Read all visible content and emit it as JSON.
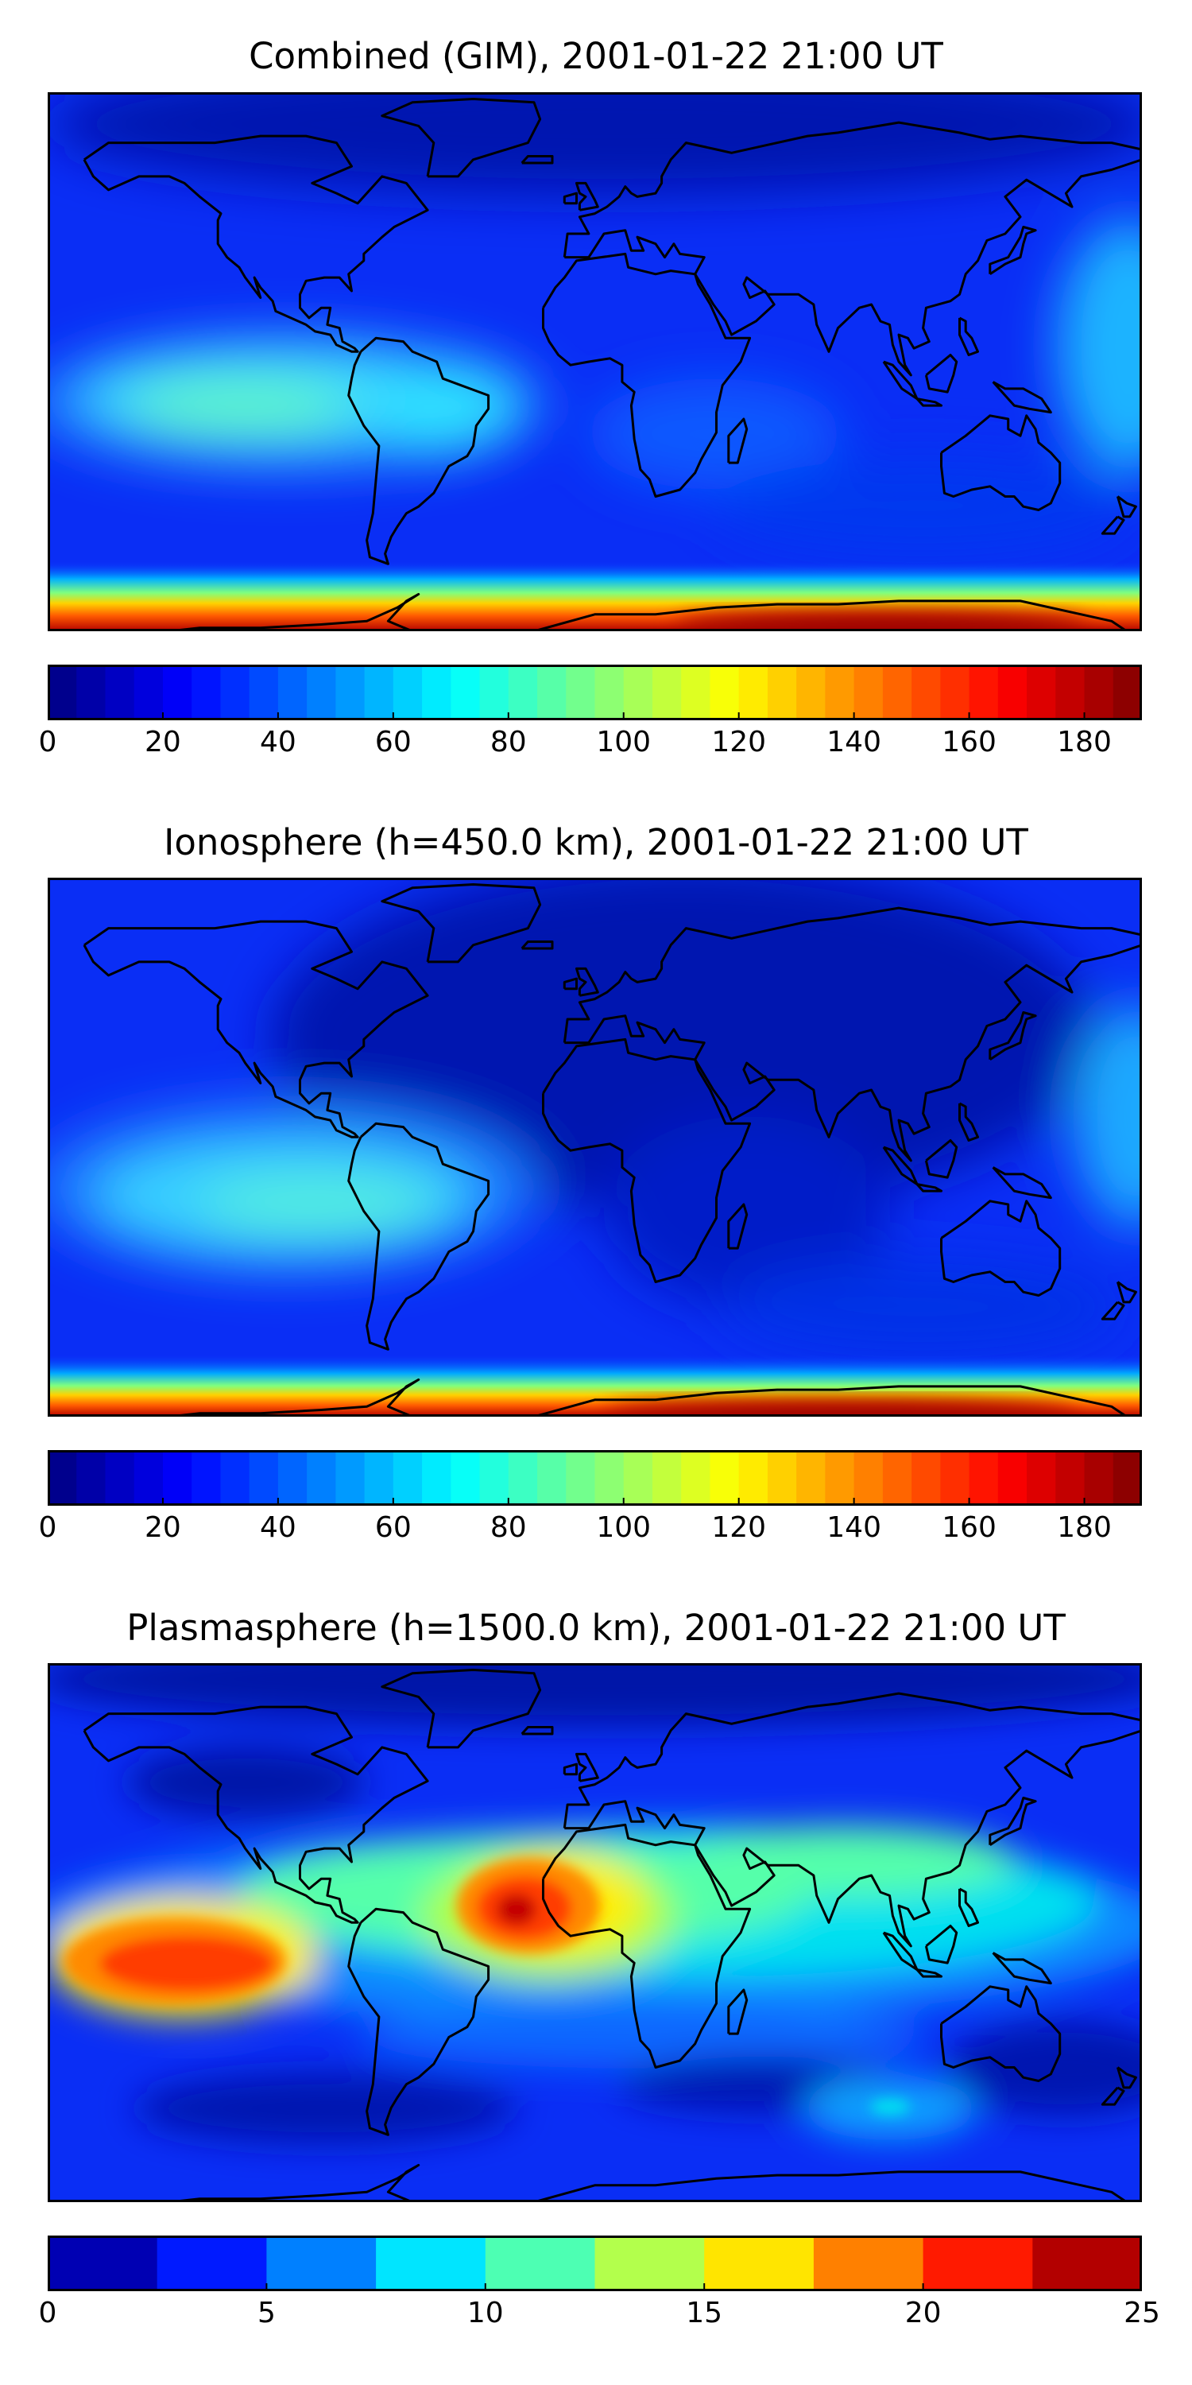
{
  "panels": [
    {
      "title": "Combined (GIM), 2001-01-22 21:00 UT",
      "colorbar": {
        "vmin": 0,
        "vmax": 190,
        "levels": 38,
        "ticks": [
          "0",
          "20",
          "40",
          "60",
          "80",
          "100",
          "120",
          "140",
          "160",
          "180"
        ]
      },
      "chart_data": {
        "type": "heatmap",
        "title": "Combined (GIM), 2001-01-22 21:00 UT",
        "xlabel": "",
        "ylabel": "",
        "projection": "plate carree",
        "zlim": [
          0,
          190
        ],
        "features": [
          {
            "region": "southern polar band (Antarctica)",
            "value": 180
          },
          {
            "region": "equatorial crest over eastern Pacific",
            "value": 80
          },
          {
            "region": "northern South America",
            "value": 75
          },
          {
            "region": "western Pacific edge",
            "value": 65
          },
          {
            "region": "Africa / Indian Ocean",
            "value": 45
          },
          {
            "region": "Eurasia / Arctic",
            "value": 20
          }
        ]
      }
    },
    {
      "title": "Ionosphere  (h=450.0 km), 2001-01-22 21:00 UT",
      "colorbar": {
        "vmin": 0,
        "vmax": 190,
        "levels": 38,
        "ticks": [
          "0",
          "20",
          "40",
          "60",
          "80",
          "100",
          "120",
          "140",
          "160",
          "180"
        ]
      },
      "chart_data": {
        "type": "heatmap",
        "title": "Ionosphere  (h=450.0 km), 2001-01-22 21:00 UT",
        "xlabel": "",
        "ylabel": "",
        "projection": "plate carree",
        "zlim": [
          0,
          190
        ],
        "features": [
          {
            "region": "southern polar band (Antarctica)",
            "value": 180
          },
          {
            "region": "South America / eastern Pacific",
            "value": 72
          },
          {
            "region": "western Pacific edge",
            "value": 60
          },
          {
            "region": "Africa",
            "value": 25
          },
          {
            "region": "Eurasia / Arctic",
            "value": 12
          }
        ]
      }
    },
    {
      "title": "Plasmasphere (h=1500.0 km), 2001-01-22 21:00 UT",
      "colorbar": {
        "vmin": 0,
        "vmax": 25,
        "levels": 10,
        "ticks": [
          "0",
          "5",
          "10",
          "15",
          "20",
          "25"
        ]
      },
      "chart_data": {
        "type": "heatmap",
        "title": "Plasmasphere (h=1500.0 km), 2001-01-22 21:00 UT",
        "xlabel": "",
        "ylabel": "",
        "projection": "plate carree",
        "zlim": [
          0,
          25
        ],
        "features": [
          {
            "region": "West Africa / Gulf of Guinea peak",
            "value": 23
          },
          {
            "region": "eastern Pacific maximum",
            "value": 21
          },
          {
            "region": "equatorial belt",
            "value": 13
          },
          {
            "region": "Indian Ocean / Maritime Continent",
            "value": 10
          },
          {
            "region": "South Atlantic / Southern Ocean",
            "value": 3
          },
          {
            "region": "Arctic",
            "value": 2
          }
        ]
      }
    }
  ]
}
